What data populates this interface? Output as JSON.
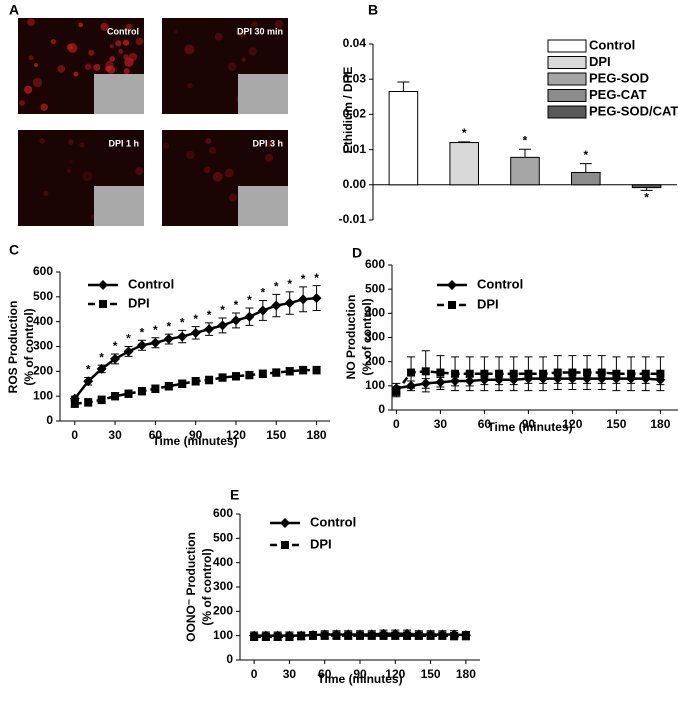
{
  "panel_labels": [
    "A",
    "B",
    "C",
    "D",
    "E"
  ],
  "images": [
    {
      "label": "Control"
    },
    {
      "label": "DPI  30 min"
    },
    {
      "label": "DPI 1 h"
    },
    {
      "label": "DPI  3 h"
    }
  ],
  "chart_data": [
    {
      "type": "bar",
      "ylabel": "Ethidium / DHE",
      "categories": [
        "Control",
        "DPI",
        "PEG-SOD",
        "PEG-CAT",
        "PEG-SOD/CAT"
      ],
      "colors": [
        "#ffffff",
        "#d9d9d9",
        "#a6a6a6",
        "#8c8c8c",
        "#595959"
      ],
      "values": [
        0.0265,
        0.012,
        0.0078,
        0.0035,
        -0.0008
      ],
      "errors": [
        0.0027,
        0.0002,
        0.0023,
        0.0025,
        0.0008
      ],
      "significance": [
        null,
        "*",
        "*",
        "*",
        "*"
      ],
      "ylim": [
        -0.01,
        0.04
      ],
      "yticks": [
        -0.01,
        {
          "value": 0,
          "label": "0.00"
        },
        0.01,
        0.02,
        0.03,
        0.04
      ]
    },
    {
      "type": "line",
      "ylabel": [
        "ROS Production",
        "(% of control)"
      ],
      "xlabel": "Time (minutes)",
      "x": [
        0,
        10,
        20,
        30,
        40,
        50,
        60,
        70,
        80,
        90,
        100,
        110,
        120,
        130,
        140,
        150,
        160,
        170,
        180
      ],
      "xlim": [
        -11,
        190
      ],
      "xticks": [
        0,
        30,
        60,
        90,
        120,
        150,
        180
      ],
      "ylim": [
        0,
        600
      ],
      "yticks": [
        0,
        100,
        200,
        300,
        400,
        500,
        600
      ],
      "series": [
        {
          "name": "Control",
          "color": "#000000",
          "marker": "diamond",
          "linestyle": "solid",
          "values": [
            90,
            160,
            210,
            250,
            280,
            305,
            315,
            330,
            340,
            355,
            370,
            385,
            405,
            420,
            445,
            465,
            475,
            490,
            495
          ],
          "errors": [
            10,
            15,
            15,
            20,
            20,
            20,
            20,
            20,
            25,
            25,
            25,
            30,
            30,
            35,
            40,
            45,
            45,
            50,
            50
          ],
          "significance": [
            null,
            "*",
            "*",
            "*",
            "*",
            "*",
            "*",
            "*",
            "*",
            "*",
            "*",
            "*",
            "*",
            "*",
            "*",
            "*",
            "*",
            "*",
            "*"
          ]
        },
        {
          "name": "DPI",
          "color": "#000000",
          "marker": "square",
          "linestyle": "dashed",
          "values": [
            70,
            75,
            85,
            100,
            110,
            120,
            130,
            140,
            150,
            160,
            165,
            175,
            180,
            185,
            190,
            195,
            200,
            205,
            205
          ],
          "errors": [
            15,
            15,
            15,
            15,
            15,
            15,
            15,
            15,
            15,
            15,
            15,
            15,
            15,
            15,
            15,
            15,
            15,
            15,
            15
          ]
        }
      ]
    },
    {
      "type": "line",
      "ylabel": [
        "NO Production",
        "(% of control)"
      ],
      "xlabel": "Time (minutes)",
      "x": [
        0,
        10,
        20,
        30,
        40,
        50,
        60,
        70,
        80,
        90,
        100,
        110,
        120,
        130,
        140,
        150,
        160,
        170,
        180
      ],
      "xlim": [
        -3,
        192
      ],
      "xticks": [
        0,
        30,
        60,
        90,
        120,
        150,
        180
      ],
      "ylim": [
        0,
        600
      ],
      "yticks": [
        0,
        100,
        200,
        300,
        400,
        500,
        600
      ],
      "series": [
        {
          "name": "Control",
          "color": "#000000",
          "marker": "diamond",
          "linestyle": "solid",
          "values": [
            90,
            100,
            110,
            115,
            120,
            120,
            125,
            125,
            125,
            130,
            130,
            130,
            130,
            130,
            130,
            130,
            130,
            130,
            125
          ],
          "errors": [
            20,
            20,
            20,
            20,
            20,
            20,
            20,
            20,
            20,
            20,
            20,
            20,
            20,
            20,
            20,
            20,
            20,
            20,
            20
          ]
        },
        {
          "name": "DPI",
          "color": "#000000",
          "marker": "square",
          "linestyle": "dashed",
          "values": [
            75,
            155,
            160,
            155,
            150,
            150,
            150,
            150,
            150,
            150,
            150,
            155,
            155,
            155,
            155,
            150,
            150,
            150,
            150
          ],
          "errors": [
            20,
            65,
            85,
            70,
            70,
            70,
            70,
            70,
            70,
            70,
            70,
            70,
            70,
            70,
            70,
            70,
            70,
            70,
            70
          ]
        }
      ]
    },
    {
      "type": "line",
      "ylabel": [
        "OONO⁻ Production",
        "(% of control)"
      ],
      "xlabel": "Time (minutes)",
      "x": [
        0,
        10,
        20,
        30,
        40,
        50,
        60,
        70,
        80,
        90,
        100,
        110,
        120,
        130,
        140,
        150,
        160,
        170,
        180
      ],
      "xlim": [
        -12,
        192
      ],
      "xticks": [
        0,
        30,
        60,
        90,
        120,
        150,
        180
      ],
      "ylim": [
        0,
        600
      ],
      "yticks": [
        0,
        100,
        200,
        300,
        400,
        500,
        600
      ],
      "series": [
        {
          "name": "Control",
          "color": "#000000",
          "marker": "diamond",
          "linestyle": "solid",
          "values": [
            100,
            100,
            100,
            100,
            100,
            102,
            105,
            105,
            105,
            105,
            105,
            108,
            108,
            108,
            105,
            105,
            105,
            105,
            102
          ],
          "errors": [
            15,
            15,
            15,
            15,
            15,
            15,
            15,
            15,
            15,
            15,
            15,
            15,
            15,
            15,
            15,
            15,
            15,
            15,
            15
          ]
        },
        {
          "name": "DPI",
          "color": "#000000",
          "marker": "square",
          "linestyle": "dashed",
          "values": [
            95,
            95,
            95,
            95,
            98,
            100,
            100,
            100,
            100,
            100,
            100,
            100,
            100,
            100,
            100,
            100,
            100,
            98,
            98
          ],
          "errors": [
            15,
            15,
            15,
            15,
            15,
            15,
            15,
            15,
            15,
            15,
            15,
            15,
            15,
            15,
            15,
            15,
            15,
            15,
            15
          ]
        }
      ]
    }
  ]
}
